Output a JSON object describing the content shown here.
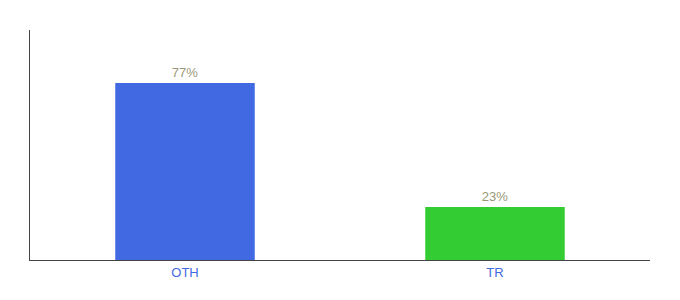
{
  "chart_data": {
    "type": "bar",
    "categories": [
      "OTH",
      "TR"
    ],
    "values": [
      77,
      23
    ],
    "value_labels": [
      "77%",
      "23%"
    ],
    "data_labels": true,
    "colors": [
      "#4169e1",
      "#33cc33"
    ],
    "ylim": [
      0,
      100
    ],
    "grid": false,
    "tick_labels": "x"
  }
}
